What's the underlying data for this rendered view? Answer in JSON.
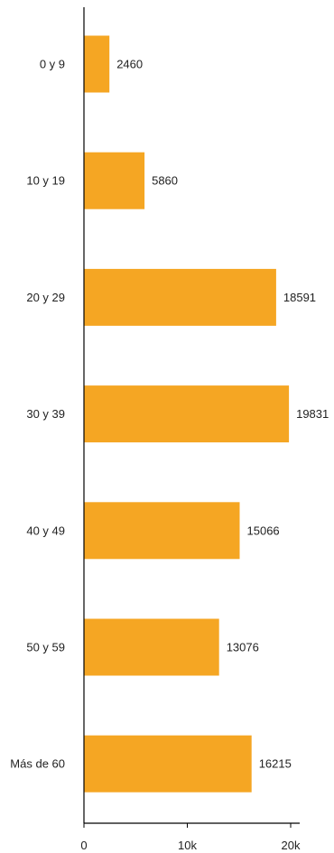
{
  "chart_data": {
    "type": "bar",
    "orientation": "horizontal",
    "categories": [
      "0 y 9",
      "10 y 19",
      "20 y 29",
      "30 y 39",
      "40 y 49",
      "50 y 59",
      "Más de 60"
    ],
    "values": [
      2460,
      5860,
      18591,
      19831,
      15066,
      13076,
      16215
    ],
    "value_labels": [
      "2460",
      "5860",
      "18591",
      "19831",
      "15066",
      "13076",
      "16215"
    ],
    "xlim": [
      0,
      20000
    ],
    "x_ticks": [
      0,
      10000,
      20000
    ],
    "x_tick_labels": [
      "0",
      "10k",
      "20k"
    ],
    "bar_color": "#F5A623",
    "grid": false,
    "legend": "none"
  }
}
